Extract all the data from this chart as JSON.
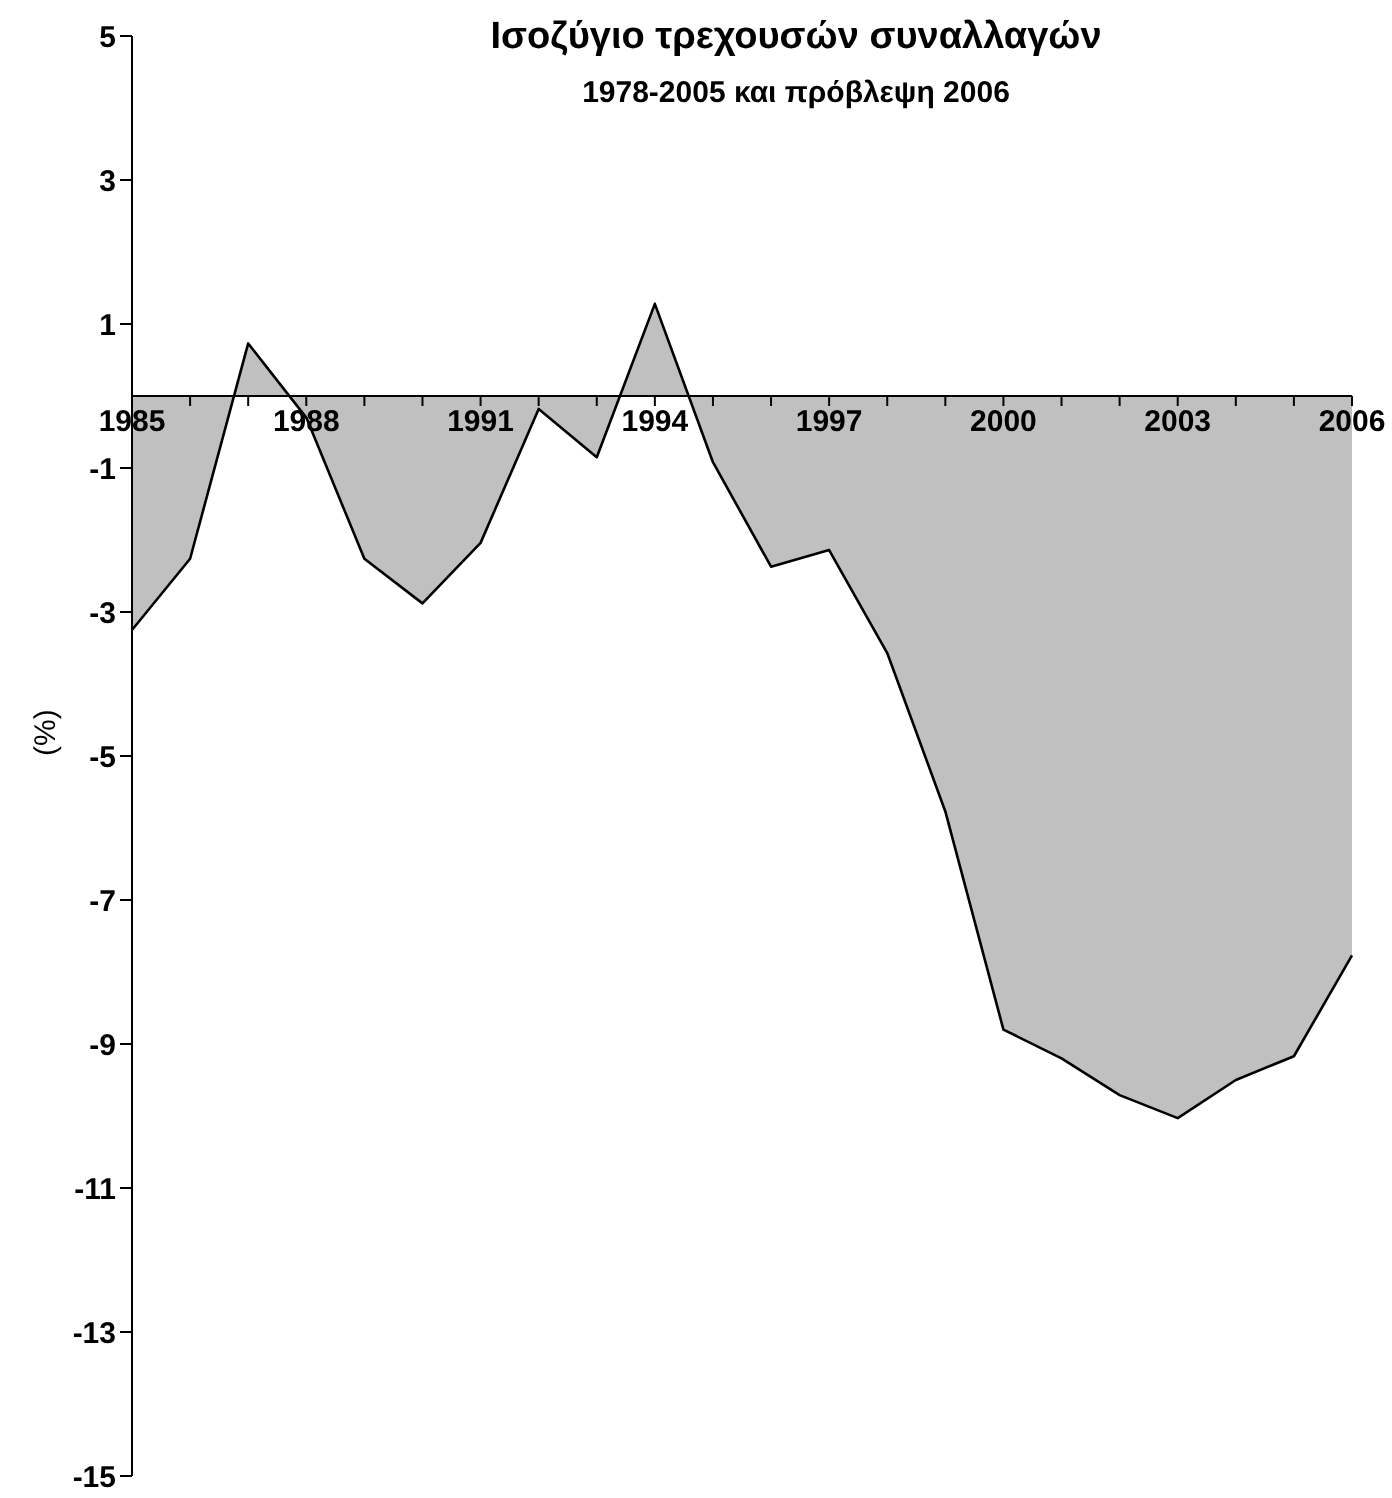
{
  "chart_data": {
    "type": "area",
    "title": "Ισοζύγιο τρεχουσών συναλλαγών",
    "subtitle": "1978-2005 και πρόβλεψη 2006",
    "ylabel": "(%)",
    "categories": [
      "1985",
      null,
      null,
      "1988",
      null,
      null,
      "1991",
      null,
      null,
      "1994",
      null,
      null,
      "1997",
      null,
      null,
      "2000",
      null,
      null,
      "2003",
      null,
      null,
      "2006"
    ],
    "series": [
      {
        "color": "#c0c0c0",
        "values": [
          -3.25,
          -2.26,
          0.73,
          -0.3,
          -2.26,
          -2.88,
          -2.04,
          -0.18,
          -0.85,
          1.28,
          -0.92,
          -2.37,
          -2.14,
          -3.57,
          -5.77,
          -8.8,
          -9.2,
          -9.71,
          -10.03,
          -9.5,
          -9.17,
          -7.77
        ]
      }
    ],
    "ylim": [
      -15,
      5
    ],
    "yticks": [
      -15,
      -13,
      -11,
      -9,
      -7,
      -5,
      -3,
      -1,
      1,
      3,
      5
    ],
    "grid": false,
    "legend": false
  }
}
